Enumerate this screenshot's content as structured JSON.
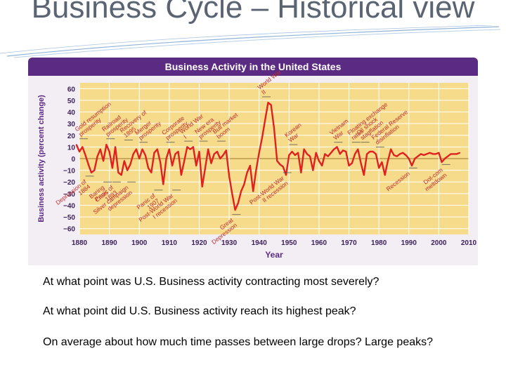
{
  "slide": {
    "title": "Business Cycle – Historical view",
    "questions": [
      "At what point was U.S. Business activity contracting most severely?",
      "At what point did U.S. Business activity reach its highest peak?",
      "On average about how much time passes between large drops? Large peaks?"
    ]
  },
  "colors": {
    "banner": "#5b2a82",
    "plot_background": "#f6dc8a",
    "line": "#e02020",
    "axis_text": "#3a1f5a",
    "annotation_text": "#c0282b"
  },
  "chart_data": {
    "type": "line",
    "title": "Business Activity in the United States",
    "xlabel": "Year",
    "ylabel": "Business activity (percent change)",
    "xlim": [
      1880,
      2010
    ],
    "ylim": [
      -65,
      65
    ],
    "xticks": [
      "1880",
      "1890",
      "1900",
      "1910",
      "1920",
      "1930",
      "1940",
      "1950",
      "1960",
      "1970",
      "1980",
      "1990",
      "2000",
      "2010"
    ],
    "yticks": [
      "60",
      "50",
      "40",
      "30",
      "20",
      "10",
      "0",
      "−10",
      "−20",
      "−30",
      "−40",
      "−50",
      "−60"
    ],
    "grid": true,
    "series": [
      {
        "points": [
          [
            1879,
            12
          ],
          [
            1880,
            6
          ],
          [
            1881,
            10
          ],
          [
            1882,
            3
          ],
          [
            1883,
            -5
          ],
          [
            1884,
            -12
          ],
          [
            1885,
            -10
          ],
          [
            1886,
            2
          ],
          [
            1887,
            8
          ],
          [
            1888,
            -2
          ],
          [
            1889,
            12
          ],
          [
            1890,
            6
          ],
          [
            1891,
            -8
          ],
          [
            1892,
            10
          ],
          [
            1893,
            -12
          ],
          [
            1894,
            -14
          ],
          [
            1895,
            -2
          ],
          [
            1896,
            -10
          ],
          [
            1897,
            -5
          ],
          [
            1898,
            4
          ],
          [
            1899,
            8
          ],
          [
            1900,
            0
          ],
          [
            1901,
            8
          ],
          [
            1902,
            3
          ],
          [
            1903,
            -8
          ],
          [
            1904,
            -12
          ],
          [
            1905,
            5
          ],
          [
            1906,
            8
          ],
          [
            1907,
            -3
          ],
          [
            1908,
            -22
          ],
          [
            1909,
            0
          ],
          [
            1910,
            8
          ],
          [
            1911,
            -6
          ],
          [
            1912,
            4
          ],
          [
            1913,
            6
          ],
          [
            1914,
            -14
          ],
          [
            1915,
            -2
          ],
          [
            1916,
            10
          ],
          [
            1917,
            8
          ],
          [
            1918,
            10
          ],
          [
            1919,
            -6
          ],
          [
            1920,
            6
          ],
          [
            1921,
            -24
          ],
          [
            1922,
            -8
          ],
          [
            1923,
            8
          ],
          [
            1924,
            -4
          ],
          [
            1925,
            4
          ],
          [
            1926,
            6
          ],
          [
            1927,
            0
          ],
          [
            1928,
            3
          ],
          [
            1929,
            7
          ],
          [
            1930,
            -15
          ],
          [
            1931,
            -30
          ],
          [
            1932,
            -44
          ],
          [
            1933,
            -38
          ],
          [
            1934,
            -28
          ],
          [
            1935,
            -22
          ],
          [
            1936,
            -12
          ],
          [
            1937,
            -6
          ],
          [
            1938,
            -28
          ],
          [
            1939,
            -10
          ],
          [
            1940,
            5
          ],
          [
            1941,
            18
          ],
          [
            1942,
            33
          ],
          [
            1943,
            48
          ],
          [
            1944,
            46
          ],
          [
            1945,
            26
          ],
          [
            1946,
            -2
          ],
          [
            1947,
            -5
          ],
          [
            1948,
            -7
          ],
          [
            1949,
            -14
          ],
          [
            1950,
            3
          ],
          [
            1951,
            6
          ],
          [
            1952,
            3
          ],
          [
            1953,
            5
          ],
          [
            1954,
            -12
          ],
          [
            1955,
            8
          ],
          [
            1956,
            4
          ],
          [
            1957,
            2
          ],
          [
            1958,
            -10
          ],
          [
            1959,
            5
          ],
          [
            1960,
            -2
          ],
          [
            1961,
            -6
          ],
          [
            1962,
            4
          ],
          [
            1963,
            2
          ],
          [
            1964,
            5
          ],
          [
            1965,
            8
          ],
          [
            1966,
            10
          ],
          [
            1967,
            4
          ],
          [
            1968,
            7
          ],
          [
            1969,
            6
          ],
          [
            1970,
            -6
          ],
          [
            1971,
            -4
          ],
          [
            1972,
            4
          ],
          [
            1973,
            8
          ],
          [
            1974,
            -4
          ],
          [
            1975,
            -14
          ],
          [
            1976,
            4
          ],
          [
            1977,
            6
          ],
          [
            1978,
            6
          ],
          [
            1979,
            4
          ],
          [
            1980,
            -8
          ],
          [
            1981,
            -3
          ],
          [
            1982,
            -14
          ],
          [
            1983,
            -2
          ],
          [
            1984,
            8
          ],
          [
            1985,
            3
          ],
          [
            1986,
            2
          ],
          [
            1987,
            4
          ],
          [
            1988,
            5
          ],
          [
            1989,
            3
          ],
          [
            1990,
            0
          ],
          [
            1991,
            -6
          ],
          [
            1992,
            0
          ],
          [
            1993,
            2
          ],
          [
            1994,
            4
          ],
          [
            1995,
            3
          ],
          [
            1996,
            4
          ],
          [
            1997,
            5
          ],
          [
            1998,
            4
          ],
          [
            1999,
            4
          ],
          [
            2000,
            5
          ],
          [
            2001,
            -3
          ],
          [
            2002,
            0
          ],
          [
            2003,
            2
          ],
          [
            2004,
            4
          ],
          [
            2005,
            4
          ],
          [
            2006,
            4
          ],
          [
            2007,
            5
          ]
        ]
      }
    ],
    "annotations_above": [
      {
        "text": "Gold resumption prosperity",
        "x": 1880,
        "y": 17
      },
      {
        "text": "Railroad prosperity",
        "x": 1889,
        "y": 17
      },
      {
        "text": "Recovery of 1895",
        "x": 1895,
        "y": 16
      },
      {
        "text": "Merger prosperity",
        "x": 1900,
        "y": 14
      },
      {
        "text": "Corporate prosperity",
        "x": 1909,
        "y": 14
      },
      {
        "text": "World War I",
        "x": 1915,
        "y": 15
      },
      {
        "text": "New era prosperity",
        "x": 1920,
        "y": 15
      },
      {
        "text": "Bull market boom",
        "x": 1926,
        "y": 15
      },
      {
        "text": "World War II",
        "x": 1941,
        "y": 53
      },
      {
        "text": "Korean War",
        "x": 1950,
        "y": 12
      },
      {
        "text": "Vietnam War",
        "x": 1965,
        "y": 14
      },
      {
        "text": "Floating exchange rates",
        "x": 1971,
        "y": 14
      },
      {
        "text": "Oil shock stagflation",
        "x": 1974,
        "y": 14
      },
      {
        "text": "Federal Reserve disinflation",
        "x": 1979,
        "y": 10
      }
    ],
    "annotations_below": [
      {
        "text": "Depression of 1884",
        "x": 1882,
        "y": -15
      },
      {
        "text": "Baring Crisis",
        "x": 1888,
        "y": -20
      },
      {
        "text": "Panic of 1893",
        "x": 1891,
        "y": -20
      },
      {
        "text": "Silver campaign depression",
        "x": 1896,
        "y": -20
      },
      {
        "text": "Panic of 1907",
        "x": 1905,
        "y": -27
      },
      {
        "text": "Post-World War I recession",
        "x": 1911,
        "y": -27
      },
      {
        "text": "Great Depression",
        "x": 1931,
        "y": -48
      },
      {
        "text": "Post-World War II recession",
        "x": 1948,
        "y": -12
      },
      {
        "text": "Recession",
        "x": 1990,
        "y": -8
      },
      {
        "text": "Dot-com meltdown",
        "x": 2001,
        "y": -5
      }
    ]
  }
}
